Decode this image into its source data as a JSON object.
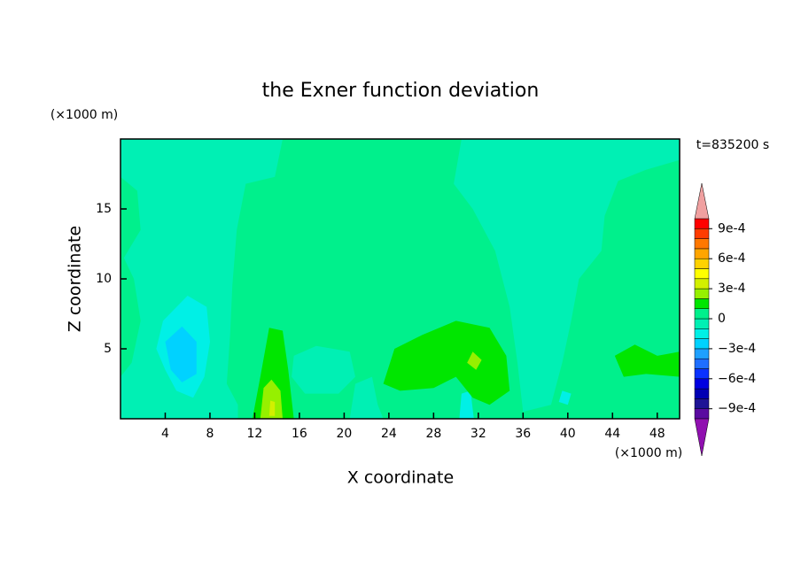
{
  "chart_data": {
    "type": "contour",
    "title": "the Exner function deviation",
    "x_label": "X coordinate",
    "y_label": "Z coordinate",
    "x_unit": "(×1000 m)",
    "y_unit": "(×1000 m)",
    "time_label": "t=835200 s",
    "xlim": [
      0,
      50
    ],
    "ylim": [
      0,
      20
    ],
    "xticks": [
      4,
      8,
      12,
      16,
      20,
      24,
      28,
      32,
      36,
      40,
      44,
      48
    ],
    "yticks": [
      5,
      10,
      15
    ],
    "background_level": 0,
    "levels": [
      -0.001,
      -0.0009,
      -0.0008,
      -0.0007,
      -0.0006,
      -0.0005,
      -0.0004,
      -0.0003,
      -0.0002,
      -0.0001,
      0,
      0.0001,
      0.0002,
      0.0003,
      0.0004,
      0.0005,
      0.0006,
      0.0007,
      0.0008,
      0.0009,
      0.001
    ],
    "colors": [
      "#5a0aa0",
      "#1e1496",
      "#0000b4",
      "#0000e1",
      "#0a32ff",
      "#1e6eff",
      "#1ea0ff",
      "#00d2ff",
      "#00f0e6",
      "#00f0b4",
      "#00f08c",
      "#00e600",
      "#96f000",
      "#d2f000",
      "#ffff00",
      "#ffd200",
      "#ffa500",
      "#ff7800",
      "#ff3c00",
      "#ff0000"
    ],
    "under_color": "#9010b0",
    "over_color": "#f0a0a0",
    "colorbar_ticks": [
      {
        "value": 0.0009,
        "label": "9e-4"
      },
      {
        "value": 0.0006,
        "label": "6e-4"
      },
      {
        "value": 0.0003,
        "label": "3e-4"
      },
      0,
      {
        "value": -0.0003,
        "label": "−3e-4"
      },
      {
        "value": -0.0006,
        "label": "−6e-4"
      },
      {
        "value": -0.0009,
        "label": "−9e-4"
      }
    ],
    "regions": [
      {
        "level": -0.0001,
        "points": [
          [
            0,
            20
          ],
          [
            14.5,
            20
          ],
          [
            13.8,
            17.3
          ],
          [
            11.2,
            16.8
          ],
          [
            10.4,
            13.5
          ],
          [
            10,
            9.5
          ],
          [
            9.8,
            6
          ],
          [
            9.5,
            2.5
          ],
          [
            10.5,
            1
          ],
          [
            10.5,
            0
          ],
          [
            0,
            0
          ],
          [
            0,
            3
          ],
          [
            1,
            4
          ],
          [
            1.8,
            7
          ],
          [
            1.2,
            10
          ],
          [
            0.3,
            11.5
          ],
          [
            1.8,
            13.5
          ],
          [
            1.5,
            16.3
          ],
          [
            0,
            17.3
          ]
        ]
      },
      {
        "level": -0.0001,
        "points": [
          [
            30.5,
            20
          ],
          [
            50,
            20
          ],
          [
            50,
            18.5
          ],
          [
            47,
            17.8
          ],
          [
            44.5,
            17
          ],
          [
            43.3,
            14.5
          ],
          [
            43,
            12
          ],
          [
            41,
            10
          ],
          [
            40.3,
            7
          ],
          [
            39.5,
            4
          ],
          [
            38.5,
            1
          ],
          [
            36,
            0.5
          ],
          [
            35.5,
            4
          ],
          [
            34.8,
            8
          ],
          [
            33.5,
            12
          ],
          [
            31.5,
            15
          ],
          [
            29.8,
            16.8
          ]
        ]
      },
      {
        "level": -0.0001,
        "points": [
          [
            15.5,
            4.5
          ],
          [
            17.5,
            5.2
          ],
          [
            20.5,
            4.8
          ],
          [
            21,
            3
          ],
          [
            19.5,
            1.8
          ],
          [
            16.5,
            1.8
          ],
          [
            15.3,
            3
          ]
        ]
      },
      {
        "level": -0.0001,
        "points": [
          [
            20.5,
            0
          ],
          [
            21,
            2.5
          ],
          [
            22.5,
            3
          ],
          [
            23,
            1
          ],
          [
            23.5,
            0
          ]
        ]
      },
      {
        "level": -0.0002,
        "points": [
          [
            3.8,
            7
          ],
          [
            6,
            8.8
          ],
          [
            7.7,
            8
          ],
          [
            8,
            5.5
          ],
          [
            7.5,
            3
          ],
          [
            6.5,
            1.5
          ],
          [
            5,
            2
          ],
          [
            4,
            3.5
          ],
          [
            3.2,
            5
          ]
        ]
      },
      {
        "level": -0.0003,
        "points": [
          [
            4,
            5.5
          ],
          [
            5.5,
            6.6
          ],
          [
            6.8,
            5.5
          ],
          [
            6.8,
            3.2
          ],
          [
            5.5,
            2.6
          ],
          [
            4.5,
            3.5
          ]
        ]
      },
      {
        "level": -0.0002,
        "points": [
          [
            30.3,
            0
          ],
          [
            30.5,
            1.8
          ],
          [
            31.3,
            2
          ],
          [
            31.6,
            0
          ]
        ]
      },
      {
        "level": -0.0002,
        "points": [
          [
            39.2,
            1.2
          ],
          [
            39.5,
            2
          ],
          [
            40.3,
            1.8
          ],
          [
            40,
            1
          ]
        ]
      },
      {
        "level": 0.0001,
        "points": [
          [
            23.5,
            2.5
          ],
          [
            24.5,
            5
          ],
          [
            27,
            6
          ],
          [
            30,
            7
          ],
          [
            33,
            6.5
          ],
          [
            34.5,
            4.5
          ],
          [
            34.8,
            2
          ],
          [
            33,
            1
          ],
          [
            31.5,
            1.5
          ],
          [
            30,
            3
          ],
          [
            28,
            2.2
          ],
          [
            25,
            2
          ]
        ]
      },
      {
        "level": 0.0001,
        "points": [
          [
            11.8,
            0
          ],
          [
            12.5,
            3
          ],
          [
            13.3,
            6.5
          ],
          [
            14.5,
            6.3
          ],
          [
            15,
            3.5
          ],
          [
            15.5,
            0
          ]
        ]
      },
      {
        "level": 0.0001,
        "points": [
          [
            44.2,
            4.5
          ],
          [
            46,
            5.3
          ],
          [
            48,
            4.5
          ],
          [
            50,
            4.8
          ],
          [
            50,
            3
          ],
          [
            47,
            3.2
          ],
          [
            45,
            3
          ]
        ]
      },
      {
        "level": 0.0002,
        "points": [
          [
            12.5,
            0
          ],
          [
            12.8,
            2.2
          ],
          [
            13.5,
            2.8
          ],
          [
            14.3,
            2
          ],
          [
            14.5,
            0
          ]
        ]
      },
      {
        "level": 0.0002,
        "points": [
          [
            31,
            4
          ],
          [
            31.5,
            4.8
          ],
          [
            32.3,
            4.2
          ],
          [
            31.8,
            3.5
          ]
        ]
      },
      {
        "level": 0.0003,
        "points": [
          [
            13.3,
            0.2
          ],
          [
            13.4,
            1.3
          ],
          [
            13.8,
            1.2
          ],
          [
            13.8,
            0.2
          ]
        ]
      }
    ]
  }
}
